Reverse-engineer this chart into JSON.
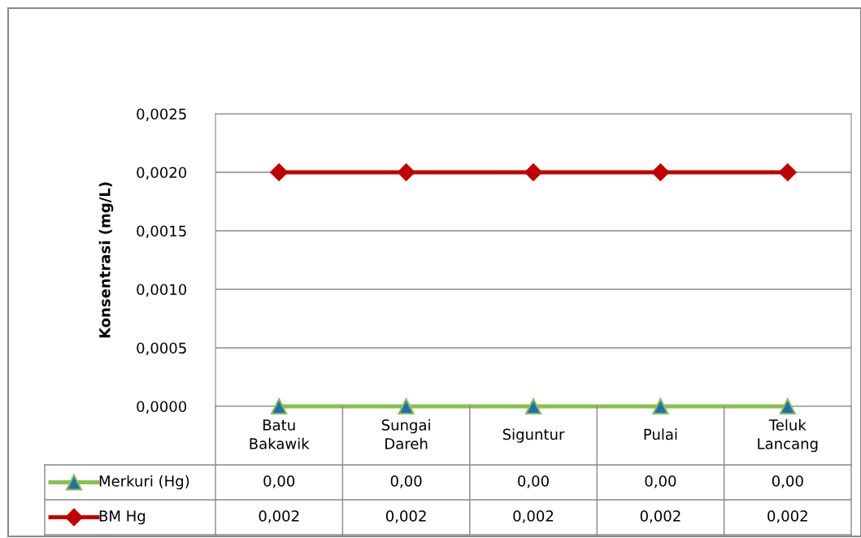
{
  "chart_data": {
    "type": "line",
    "ylabel": "Konsentrasi (mg/L)",
    "categories": [
      "Batu\nBakawik",
      "Sungai\nDareh",
      "Siguntur",
      "Pulai",
      "Teluk\nLancang"
    ],
    "series": [
      {
        "name": "Merkuri (Hg)",
        "color": "#8cbf4f",
        "marker": "triangle",
        "values": [
          0,
          0,
          0,
          0,
          0
        ],
        "value_labels": [
          "0,00",
          "0,00",
          "0,00",
          "0,00",
          "0,00"
        ]
      },
      {
        "name": "BM Hg",
        "color": "#c00000",
        "marker": "diamond",
        "values": [
          0.002,
          0.002,
          0.002,
          0.002,
          0.002
        ],
        "value_labels": [
          "0,002",
          "0,002",
          "0,002",
          "0,002",
          "0,002"
        ]
      }
    ],
    "ylim": [
      0,
      0.0025
    ],
    "yticks": [
      {
        "value": 0,
        "label": "0,0000"
      },
      {
        "value": 0.0005,
        "label": "0,0005"
      },
      {
        "value": 0.001,
        "label": "0,0010"
      },
      {
        "value": 0.0015,
        "label": "0,0015"
      },
      {
        "value": 0.002,
        "label": "0,0020"
      },
      {
        "value": 0.0025,
        "label": "0,0025"
      }
    ],
    "grid": "y",
    "line_style": "solid",
    "legend": "bottom"
  }
}
